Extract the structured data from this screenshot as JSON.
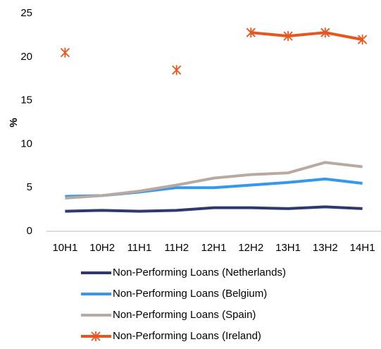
{
  "chart_data": {
    "type": "line",
    "y_label": "%",
    "categories": [
      "10H1",
      "10H2",
      "11H1",
      "11H2",
      "12H1",
      "12H2",
      "13H1",
      "13H2",
      "14H1"
    ],
    "ylim": [
      0,
      25
    ],
    "yticks": [
      0,
      5,
      10,
      15,
      20,
      25
    ],
    "grid": false,
    "series": [
      {
        "name": "Non-Performing Loans (Netherlands)",
        "color": "#2e3a6e",
        "values": [
          2.3,
          2.4,
          2.3,
          2.4,
          2.7,
          2.7,
          2.6,
          2.8,
          2.6
        ]
      },
      {
        "name": "Non-Performing Loans (Belgium)",
        "color": "#3399ee",
        "values": [
          4.0,
          4.1,
          4.5,
          5.0,
          5.0,
          5.3,
          5.6,
          6.0,
          5.5
        ]
      },
      {
        "name": "Non-Performing Loans (Spain)",
        "color": "#b8aaa0",
        "values": [
          3.8,
          4.1,
          4.6,
          5.3,
          6.1,
          6.5,
          6.7,
          7.9,
          7.4
        ]
      },
      {
        "name": "Non-Performing Loans (Ireland)",
        "color": "#e8561e",
        "marker": "asterisk",
        "values": [
          20.5,
          null,
          null,
          18.5,
          null,
          22.8,
          22.4,
          22.8,
          22.0
        ]
      }
    ]
  }
}
